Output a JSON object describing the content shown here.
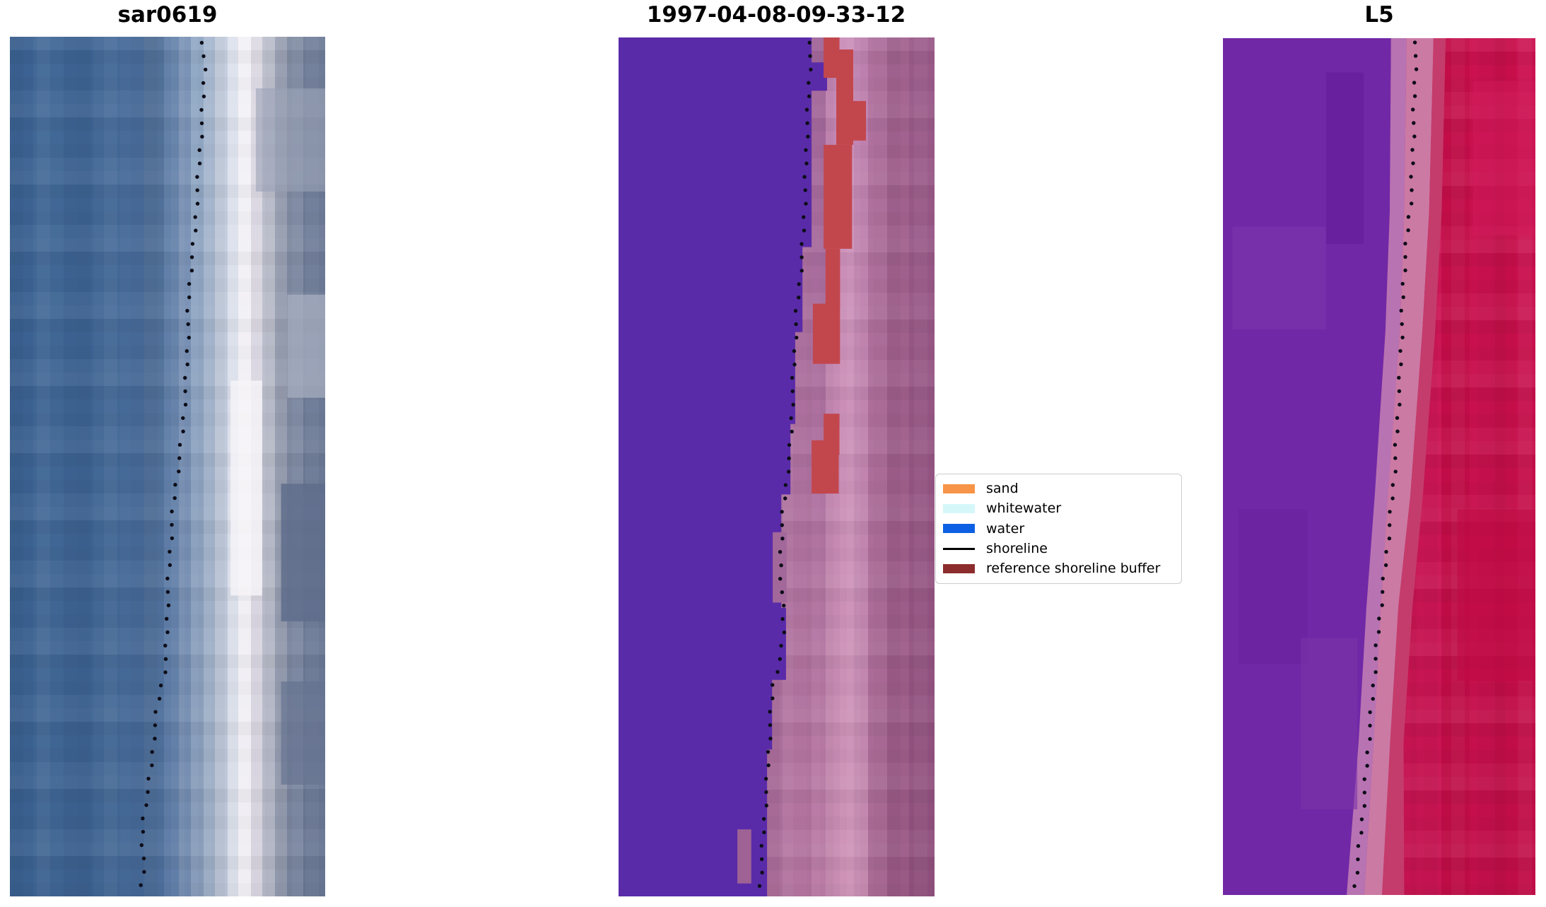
{
  "chart_data": {
    "type": "image",
    "title": "",
    "layout": "three satellite image panels side by side with dotted shoreline overlay and a legend between panel 2 and panel 3",
    "dot_color": "#0d0d18",
    "dot_spacing": 19,
    "dot_radius": 2.7,
    "panels": [
      {
        "id": "sar0619",
        "title": "sar0619",
        "columns": [
          {
            "w": 0.075,
            "c": "#3c6293",
            "c2": "#3a608f"
          },
          {
            "w": 0.095,
            "c": "#416896",
            "c2": "#3e6492"
          },
          {
            "w": 0.095,
            "c": "#3e6494",
            "c2": "#3c6190"
          },
          {
            "w": 0.085,
            "c": "#446997",
            "c2": "#416693"
          },
          {
            "w": 0.075,
            "c": "#486b9a",
            "c2": "#446896"
          },
          {
            "w": 0.065,
            "c": "#527199",
            "c2": "#4d6e9a"
          },
          {
            "w": 0.045,
            "c": "#6381a9",
            "c2": "#5b79a4"
          },
          {
            "w": 0.04,
            "c": "#7b93b6",
            "c2": "#7089ad"
          },
          {
            "w": 0.04,
            "c": "#93aac6",
            "c2": "#879cba"
          },
          {
            "w": 0.035,
            "c": "#abbcd4",
            "c2": "#9fb0c8"
          },
          {
            "w": 0.04,
            "c": "#c6cfe0",
            "c2": "#bac4d6"
          },
          {
            "w": 0.035,
            "c": "#dee3ee",
            "c2": "#d8dde8"
          },
          {
            "w": 0.04,
            "c": "#f2f1f6",
            "c2": "#efedf3"
          },
          {
            "w": 0.035,
            "c": "#dddae4",
            "c2": "#d6d3de"
          },
          {
            "w": 0.04,
            "c": "#bfc2cf",
            "c2": "#b4b8c7"
          },
          {
            "w": 0.04,
            "c": "#9ea5b7",
            "c2": "#939bae"
          },
          {
            "w": 0.05,
            "c": "#848fa6",
            "c2": "#7a86a0"
          },
          {
            "w": 0.07,
            "c": "#6f7c98",
            "c2": "#677592"
          }
        ],
        "regions": [],
        "patches": [
          {
            "x": 0.7,
            "y": 0.4,
            "w": 0.1,
            "h": 0.25,
            "color": "#f7f5f9",
            "opacity": 0.8
          },
          {
            "x": 0.78,
            "y": 0.06,
            "w": 0.22,
            "h": 0.12,
            "color": "#9aa2b6",
            "opacity": 0.6
          },
          {
            "x": 0.88,
            "y": 0.3,
            "w": 0.12,
            "h": 0.12,
            "color": "#aab1c2",
            "opacity": 0.7
          },
          {
            "x": 0.86,
            "y": 0.52,
            "w": 0.14,
            "h": 0.16,
            "color": "#5f6d8c",
            "opacity": 0.85
          },
          {
            "x": 0.86,
            "y": 0.75,
            "w": 0.14,
            "h": 0.12,
            "color": "#667492",
            "opacity": 0.7
          }
        ],
        "shoreline": [
          [
            0.612,
            0.007
          ],
          [
            0.617,
            0.039
          ],
          [
            0.612,
            0.081
          ],
          [
            0.605,
            0.122
          ],
          [
            0.599,
            0.155
          ],
          [
            0.592,
            0.192
          ],
          [
            0.587,
            0.229
          ],
          [
            0.576,
            0.261
          ],
          [
            0.567,
            0.303
          ],
          [
            0.565,
            0.344
          ],
          [
            0.561,
            0.385
          ],
          [
            0.554,
            0.426
          ],
          [
            0.547,
            0.463
          ],
          [
            0.534,
            0.5
          ],
          [
            0.522,
            0.533
          ],
          [
            0.513,
            0.57
          ],
          [
            0.507,
            0.607
          ],
          [
            0.5,
            0.652
          ],
          [
            0.498,
            0.697
          ],
          [
            0.493,
            0.734
          ],
          [
            0.478,
            0.759
          ],
          [
            0.466,
            0.784
          ],
          [
            0.457,
            0.812
          ],
          [
            0.451,
            0.841
          ],
          [
            0.437,
            0.88
          ],
          [
            0.424,
            0.903
          ],
          [
            0.419,
            0.936
          ],
          [
            0.426,
            0.95
          ],
          [
            0.422,
            0.973
          ],
          [
            0.415,
            0.993
          ]
        ]
      },
      {
        "id": "classified",
        "title": "1997-04-08-09-33-12",
        "columns": [
          {
            "w": 0.47,
            "c": "#5a2ba9"
          },
          {
            "w": 0.05,
            "c": "#9d6295",
            "c2": "#a86b97"
          },
          {
            "w": 0.09,
            "c": "#a86d9d",
            "c2": "#b3749f"
          },
          {
            "w": 0.045,
            "c": "#a4689c",
            "c2": "#c080aa"
          },
          {
            "w": 0.045,
            "c": "#c285b3",
            "c2": "#c88cb2"
          },
          {
            "w": 0.045,
            "c": "#c98db8",
            "c2": "#cd92b6"
          },
          {
            "w": 0.045,
            "c": "#bd80ae",
            "c2": "#c489af"
          },
          {
            "w": 0.06,
            "c": "#b0719f",
            "c2": "#a96a94"
          },
          {
            "w": 0.07,
            "c": "#a36390",
            "c2": "#9a5a86"
          },
          {
            "w": 0.08,
            "c": "#9a5a89",
            "c2": "#8f4f7c"
          }
        ],
        "regions": [
          {
            "name": "water-classification-mask",
            "color": "#5a2ba9",
            "points": [
              [
                0,
                0
              ],
              [
                0.611,
                0
              ],
              [
                0.611,
                0.029
              ],
              [
                0.66,
                0.029
              ],
              [
                0.66,
                0.062
              ],
              [
                0.611,
                0.062
              ],
              [
                0.611,
                0.244
              ],
              [
                0.582,
                0.244
              ],
              [
                0.582,
                0.343
              ],
              [
                0.559,
                0.343
              ],
              [
                0.559,
                0.45
              ],
              [
                0.544,
                0.45
              ],
              [
                0.544,
                0.532
              ],
              [
                0.515,
                0.532
              ],
              [
                0.515,
                0.664
              ],
              [
                0.53,
                0.664
              ],
              [
                0.53,
                0.748
              ],
              [
                0.486,
                0.748
              ],
              [
                0.486,
                0.829
              ],
              [
                0.47,
                0.829
              ],
              [
                0.47,
                1
              ],
              [
                0,
                1
              ]
            ]
          }
        ],
        "patches": [
          {
            "x": 0.649,
            "y": 0.0,
            "w": 0.05,
            "h": 0.047,
            "color": "#c2474d"
          },
          {
            "x": 0.689,
            "y": 0.014,
            "w": 0.054,
            "h": 0.111,
            "color": "#c2474d"
          },
          {
            "x": 0.738,
            "y": 0.074,
            "w": 0.045,
            "h": 0.046,
            "color": "#c2474d"
          },
          {
            "x": 0.649,
            "y": 0.125,
            "w": 0.09,
            "h": 0.121,
            "color": "#c2474d"
          },
          {
            "x": 0.655,
            "y": 0.246,
            "w": 0.046,
            "h": 0.069,
            "color": "#c2474d"
          },
          {
            "x": 0.615,
            "y": 0.31,
            "w": 0.086,
            "h": 0.07,
            "color": "#c2474d"
          },
          {
            "x": 0.649,
            "y": 0.438,
            "w": 0.05,
            "h": 0.048,
            "color": "#c2474d"
          },
          {
            "x": 0.611,
            "y": 0.469,
            "w": 0.086,
            "h": 0.062,
            "color": "#c2474d"
          },
          {
            "x": 0.488,
            "y": 0.576,
            "w": 0.044,
            "h": 0.082,
            "color": "#a2689a"
          },
          {
            "x": 0.376,
            "y": 0.922,
            "w": 0.044,
            "h": 0.063,
            "color": "#9e6394"
          }
        ],
        "shoreline": [
          [
            0.608,
            0.006
          ],
          [
            0.602,
            0.063
          ],
          [
            0.595,
            0.121
          ],
          [
            0.591,
            0.179
          ],
          [
            0.584,
            0.236
          ],
          [
            0.573,
            0.286
          ],
          [
            0.564,
            0.318
          ],
          [
            0.557,
            0.368
          ],
          [
            0.55,
            0.417
          ],
          [
            0.546,
            0.467
          ],
          [
            0.532,
            0.516
          ],
          [
            0.519,
            0.557
          ],
          [
            0.512,
            0.607
          ],
          [
            0.519,
            0.656
          ],
          [
            0.523,
            0.697
          ],
          [
            0.512,
            0.722
          ],
          [
            0.488,
            0.755
          ],
          [
            0.479,
            0.804
          ],
          [
            0.472,
            0.853
          ],
          [
            0.463,
            0.903
          ],
          [
            0.454,
            0.952
          ],
          [
            0.447,
            0.995
          ]
        ]
      },
      {
        "id": "L5",
        "title": "L5",
        "columns": [
          {
            "w": 0.5,
            "c": "#7128a6"
          },
          {
            "w": 0.06,
            "c": "#c93f6e",
            "c2": "#bd3a67"
          },
          {
            "w": 0.06,
            "c": "#ca1553",
            "c2": "#c41350"
          },
          {
            "w": 0.08,
            "c": "#d01758",
            "c2": "#c81452"
          },
          {
            "w": 0.09,
            "c": "#c30d49",
            "c2": "#bd0c46"
          },
          {
            "w": 0.08,
            "c": "#cb1150",
            "c2": "#c30f4b"
          },
          {
            "w": 0.07,
            "c": "#c60e4a",
            "c2": "#bf0d47"
          },
          {
            "w": 0.06,
            "c": "#cc1251",
            "c2": "#c10e48"
          }
        ],
        "regions": [
          {
            "name": "purple-land-region",
            "color": "#7128a6",
            "points": [
              [
                0,
                0
              ],
              [
                0.538,
                0
              ],
              [
                0.534,
                0.203
              ],
              [
                0.52,
                0.343
              ],
              [
                0.486,
                0.533
              ],
              [
                0.459,
                0.665
              ],
              [
                0.434,
                0.822
              ],
              [
                0.396,
                1
              ],
              [
                0,
                1
              ]
            ]
          },
          {
            "name": "mauve-transition-band",
            "color": "#b873b3",
            "points": [
              [
                0.538,
                0
              ],
              [
                0.534,
                0.203
              ],
              [
                0.52,
                0.343
              ],
              [
                0.486,
                0.533
              ],
              [
                0.459,
                0.665
              ],
              [
                0.434,
                0.822
              ],
              [
                0.396,
                1
              ],
              [
                0.452,
                1
              ],
              [
                0.482,
                0.822
              ],
              [
                0.505,
                0.665
              ],
              [
                0.528,
                0.533
              ],
              [
                0.566,
                0.343
              ],
              [
                0.58,
                0.203
              ],
              [
                0.588,
                0
              ]
            ]
          },
          {
            "name": "pink-transition-band",
            "color": "#cb7aa4",
            "points": [
              [
                0.588,
                0
              ],
              [
                0.58,
                0.203
              ],
              [
                0.566,
                0.343
              ],
              [
                0.528,
                0.533
              ],
              [
                0.505,
                0.665
              ],
              [
                0.482,
                0.822
              ],
              [
                0.452,
                1
              ],
              [
                0.509,
                1
              ],
              [
                0.535,
                0.822
              ],
              [
                0.561,
                0.665
              ],
              [
                0.6,
                0.533
              ],
              [
                0.638,
                0.343
              ],
              [
                0.66,
                0.203
              ],
              [
                0.674,
                0
              ]
            ]
          },
          {
            "name": "rose-transition-band",
            "color": "#c43c6b",
            "points": [
              [
                0.674,
                0
              ],
              [
                0.66,
                0.203
              ],
              [
                0.638,
                0.343
              ],
              [
                0.6,
                0.533
              ],
              [
                0.561,
                0.665
              ],
              [
                0.535,
                0.822
              ],
              [
                0.509,
                1
              ],
              [
                0.58,
                1
              ],
              [
                0.578,
                0.822
              ],
              [
                0.606,
                0.665
              ],
              [
                0.64,
                0.533
              ],
              [
                0.679,
                0.343
              ],
              [
                0.7,
                0.203
              ],
              [
                0.713,
                0
              ]
            ]
          }
        ],
        "patches": [
          {
            "x": 0.03,
            "y": 0.22,
            "w": 0.3,
            "h": 0.12,
            "color": "#7b31ab",
            "opacity": 0.8
          },
          {
            "x": 0.33,
            "y": 0.04,
            "w": 0.12,
            "h": 0.2,
            "color": "#671d9b",
            "opacity": 0.7
          },
          {
            "x": 0.05,
            "y": 0.55,
            "w": 0.22,
            "h": 0.18,
            "color": "#6c22a0",
            "opacity": 0.7
          },
          {
            "x": 0.25,
            "y": 0.7,
            "w": 0.18,
            "h": 0.2,
            "color": "#7c33aa",
            "opacity": 0.6
          },
          {
            "x": 0.75,
            "y": 0.55,
            "w": 0.25,
            "h": 0.2,
            "color": "#c00a45",
            "opacity": 0.6
          },
          {
            "x": 0.8,
            "y": 0.05,
            "w": 0.2,
            "h": 0.18,
            "color": "#d11a5a",
            "opacity": 0.5
          }
        ],
        "shoreline": [
          [
            0.618,
            0.005
          ],
          [
            0.613,
            0.063
          ],
          [
            0.609,
            0.12
          ],
          [
            0.604,
            0.178
          ],
          [
            0.588,
            0.236
          ],
          [
            0.577,
            0.285
          ],
          [
            0.572,
            0.343
          ],
          [
            0.566,
            0.401
          ],
          [
            0.557,
            0.459
          ],
          [
            0.547,
            0.516
          ],
          [
            0.534,
            0.566
          ],
          [
            0.52,
            0.615
          ],
          [
            0.505,
            0.665
          ],
          [
            0.491,
            0.714
          ],
          [
            0.48,
            0.764
          ],
          [
            0.468,
            0.813
          ],
          [
            0.457,
            0.863
          ],
          [
            0.446,
            0.912
          ],
          [
            0.432,
            0.958
          ],
          [
            0.421,
            0.995
          ]
        ]
      }
    ],
    "legend": {
      "items": [
        {
          "label": "sand",
          "type": "patch",
          "color": "#f79447"
        },
        {
          "label": "whitewater",
          "type": "patch",
          "color": "#d6f7f9"
        },
        {
          "label": "water",
          "type": "patch",
          "color": "#0d60e4"
        },
        {
          "label": "shoreline",
          "type": "line",
          "color": "#000000"
        },
        {
          "label": "reference shoreline buffer",
          "type": "patch",
          "color": "#8c2c2c"
        }
      ]
    }
  }
}
